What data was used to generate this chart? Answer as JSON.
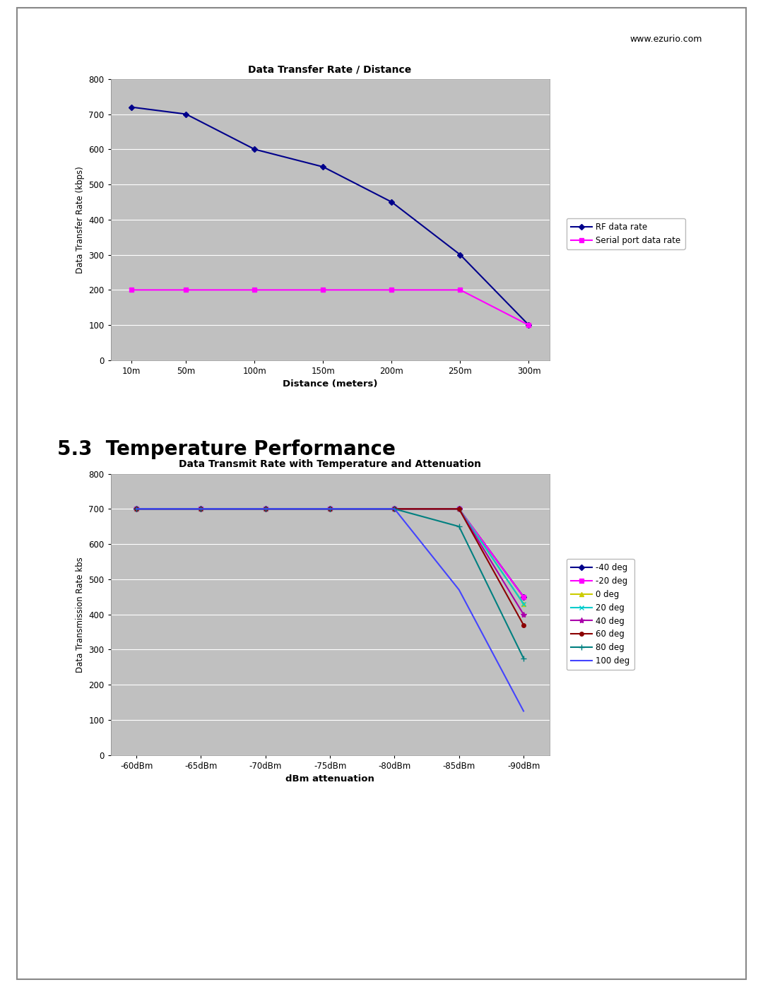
{
  "page_bg": "#ffffff",
  "border_color": "#888888",
  "url_text": "www.ezurio.com",
  "section_title": "5.3  Temperature Performance",
  "chart1": {
    "title": "Data Transfer Rate / Distance",
    "xlabel": "Distance (meters)",
    "ylabel": "Data Transfer Rate (kbps)",
    "xlabels": [
      "10m",
      "50m",
      "100m",
      "150m",
      "200m",
      "250m",
      "300m"
    ],
    "xvals": [
      10,
      50,
      100,
      150,
      200,
      250,
      300
    ],
    "ylim": [
      0,
      800
    ],
    "yticks": [
      0,
      100,
      200,
      300,
      400,
      500,
      600,
      700,
      800
    ],
    "bg_color": "#c0c0c0",
    "series": [
      {
        "label": "RF data rate",
        "color": "#00008B",
        "marker": "D",
        "markersize": 4,
        "linewidth": 1.5,
        "yvals": [
          720,
          700,
          600,
          550,
          450,
          300,
          100
        ]
      },
      {
        "label": "Serial port data rate",
        "color": "#ff00ff",
        "marker": "s",
        "markersize": 4,
        "linewidth": 1.5,
        "yvals": [
          200,
          200,
          200,
          200,
          200,
          200,
          100
        ]
      }
    ]
  },
  "chart2": {
    "title": "Data Transmit Rate with Temperature and Attenuation",
    "xlabel": "dBm attenuation",
    "ylabel": "Data Transmission Rate kbs",
    "xlabels": [
      "-60dBm",
      "-65dBm",
      "-70dBm",
      "-75dBm",
      "-80dBm",
      "-85dBm",
      "-90dBm"
    ],
    "xvals": [
      -60,
      -65,
      -70,
      -75,
      -80,
      -85,
      -90
    ],
    "ylim": [
      0,
      800
    ],
    "yticks": [
      0,
      100,
      200,
      300,
      400,
      500,
      600,
      700,
      800
    ],
    "bg_color": "#c0c0c0",
    "series": [
      {
        "label": "-40 deg",
        "color": "#00008B",
        "marker": "D",
        "markersize": 4,
        "linewidth": 1.5,
        "yvals": [
          700,
          700,
          700,
          700,
          700,
          700,
          450
        ]
      },
      {
        "label": "-20 deg",
        "color": "#ff00ff",
        "marker": "s",
        "markersize": 4,
        "linewidth": 1.5,
        "yvals": [
          700,
          700,
          700,
          700,
          700,
          700,
          450
        ]
      },
      {
        "label": "0 deg",
        "color": "#cccc00",
        "marker": "^",
        "markersize": 4,
        "linewidth": 1.5,
        "yvals": [
          700,
          700,
          700,
          700,
          700,
          700,
          430
        ]
      },
      {
        "label": "20 deg",
        "color": "#00cccc",
        "marker": "x",
        "markersize": 5,
        "linewidth": 1.5,
        "yvals": [
          700,
          700,
          700,
          700,
          700,
          700,
          430
        ]
      },
      {
        "label": "40 deg",
        "color": "#aa00aa",
        "marker": "*",
        "markersize": 6,
        "linewidth": 1.5,
        "yvals": [
          700,
          700,
          700,
          700,
          700,
          700,
          400
        ]
      },
      {
        "label": "60 deg",
        "color": "#8B0000",
        "marker": "o",
        "markersize": 4,
        "linewidth": 1.5,
        "yvals": [
          700,
          700,
          700,
          700,
          700,
          700,
          370
        ]
      },
      {
        "label": "80 deg",
        "color": "#008080",
        "marker": "+",
        "markersize": 6,
        "linewidth": 1.5,
        "yvals": [
          700,
          700,
          700,
          700,
          700,
          650,
          275
        ]
      },
      {
        "label": "100 deg",
        "color": "#4444ff",
        "marker": "None",
        "markersize": 4,
        "linewidth": 1.5,
        "yvals": [
          700,
          700,
          700,
          700,
          700,
          470,
          125
        ]
      }
    ]
  }
}
